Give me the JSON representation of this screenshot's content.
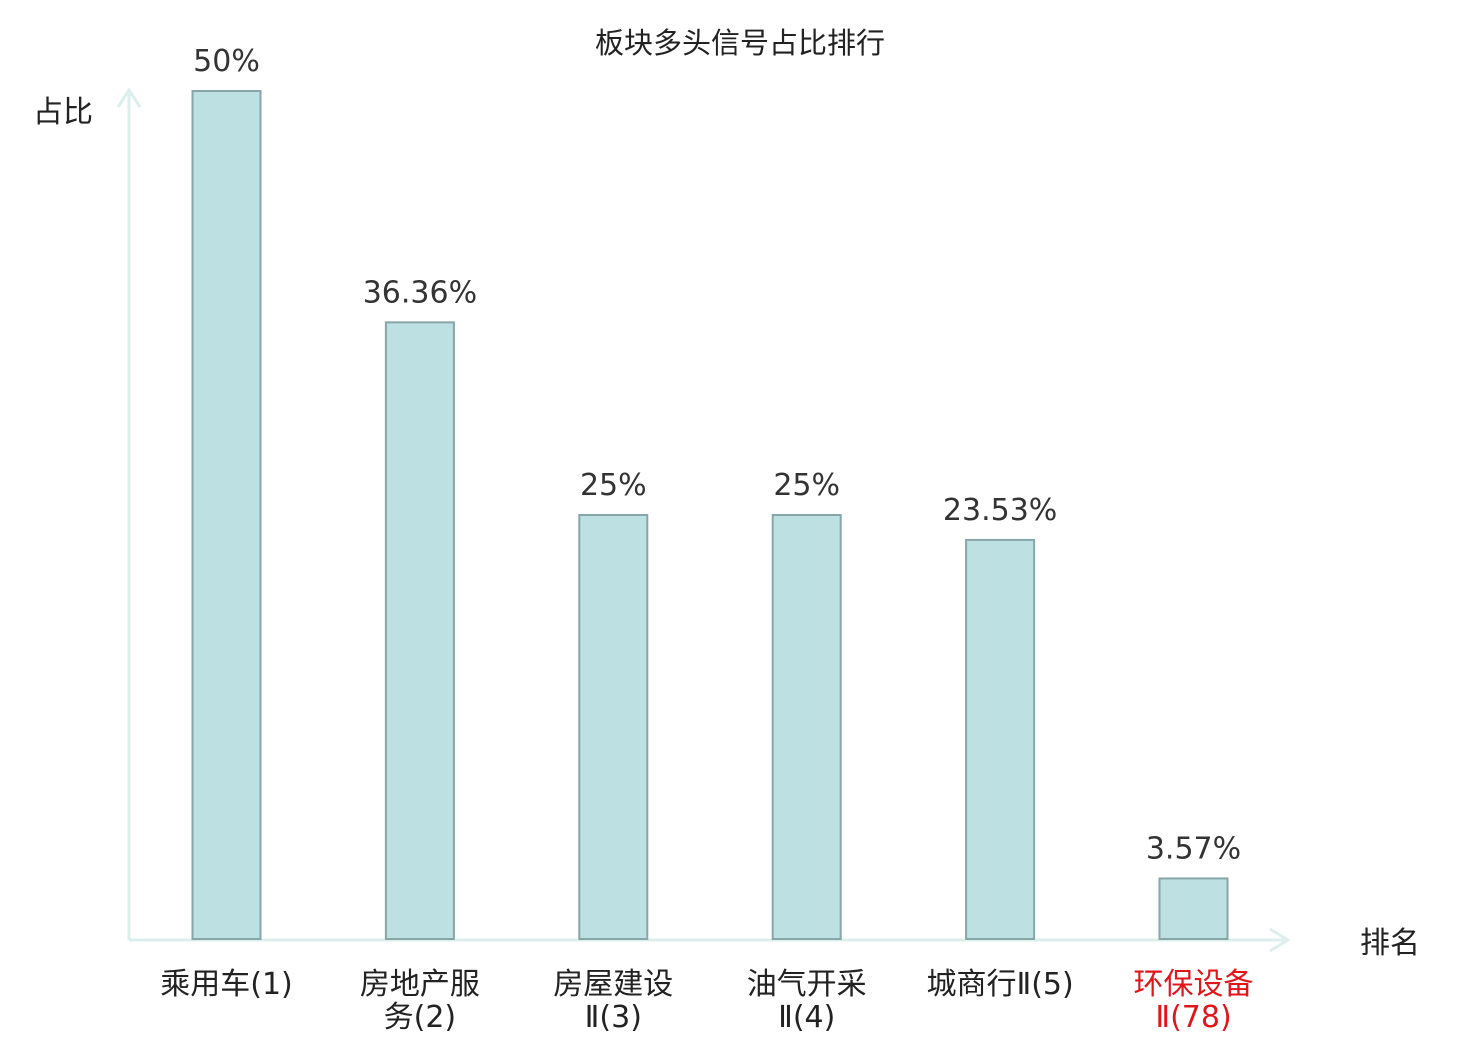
{
  "chart_data": {
    "type": "bar",
    "title": "板块多头信号占比排行",
    "xlabel": "排名",
    "ylabel": "占比",
    "ylim": [
      0,
      50
    ],
    "grid": false,
    "legend": "none",
    "categories": [
      [
        "乘用车(1)"
      ],
      [
        "房地产服",
        "务(2)"
      ],
      [
        "房屋建设",
        "Ⅱ(3)"
      ],
      [
        "油气开采",
        "Ⅱ(4)"
      ],
      [
        "城商行Ⅱ(5)"
      ],
      [
        "环保设备",
        "Ⅱ(78)"
      ]
    ],
    "values": [
      50,
      36.36,
      25,
      25,
      23.53,
      3.57
    ],
    "value_labels": [
      "50%",
      "36.36%",
      "25%",
      "25%",
      "23.53%",
      "3.57%"
    ],
    "highlighted": [
      false,
      false,
      false,
      false,
      false,
      true
    ],
    "colors": {
      "bar_fill": "#bde0e2",
      "bar_stroke": "#87a6a8",
      "axis": "#dcefec",
      "text": "#222222",
      "value_text": "#333333",
      "highlight_text": "#e0161b"
    }
  }
}
